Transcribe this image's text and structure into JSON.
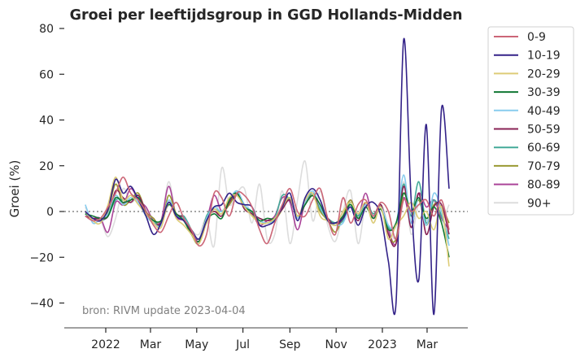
{
  "chart_data": {
    "type": "line",
    "title": "Groei per leeftijdsgroup in GGD Hollands-Midden",
    "xlabel": "",
    "ylabel": "Groei (%)",
    "ylim": [
      -50,
      80
    ],
    "xlim": [
      "2021-11-15",
      "2023-04-20"
    ],
    "yticks": [
      -40,
      -20,
      0,
      20,
      40,
      60,
      80
    ],
    "ytick_labels": [
      "−40",
      "−20",
      "0",
      "20",
      "40",
      "60",
      "80"
    ],
    "xticks": [
      "2022-01-01",
      "2022-03-01",
      "2022-05-01",
      "2022-07-01",
      "2022-09-01",
      "2022-11-01",
      "2023-01-01",
      "2023-03-01"
    ],
    "xtick_labels": [
      "2022",
      "Mar",
      "May",
      "Jul",
      "Sep",
      "Nov",
      "2023",
      "Mar"
    ],
    "reference_line": 0,
    "annotation": "bron: RIVM update 2023-04-04",
    "legend_position": "outside-right",
    "grid": false,
    "x_start": "2021-12-05",
    "x_step_days": 10,
    "series": [
      {
        "name": "0-9",
        "color": "#cc6677",
        "values": [
          -2,
          -4,
          -3,
          2,
          8,
          15,
          8,
          5,
          0,
          -6,
          -9,
          -2,
          4,
          -3,
          -8,
          -15,
          -10,
          8,
          6,
          -2,
          8,
          7,
          2,
          -8,
          -14,
          -5,
          3,
          10,
          0,
          -2,
          5,
          10,
          -3,
          -10,
          6,
          -5,
          3,
          5,
          -2,
          4,
          0,
          -12,
          5,
          0,
          3,
          5,
          -2,
          5,
          -8
        ]
      },
      {
        "name": "10-19",
        "color": "#332288",
        "values": [
          0,
          -3,
          -4,
          1,
          14,
          8,
          11,
          5,
          -2,
          -10,
          -5,
          4,
          -2,
          -4,
          -8,
          -12,
          -4,
          2,
          3,
          8,
          4,
          3,
          2,
          -6,
          -6,
          -4,
          2,
          8,
          -4,
          6,
          10,
          5,
          -4,
          -5,
          -3,
          2,
          -6,
          2,
          4,
          -2,
          -22,
          -40,
          75,
          5,
          -30,
          38,
          -45,
          45,
          10
        ]
      },
      {
        "name": "20-29",
        "color": "#ddcc77",
        "values": [
          0,
          -4,
          -5,
          3,
          15,
          5,
          7,
          3,
          -1,
          -5,
          -7,
          4,
          -3,
          -6,
          -10,
          -14,
          -5,
          1,
          -1,
          6,
          7,
          2,
          -2,
          -5,
          -5,
          -3,
          2,
          6,
          -2,
          5,
          8,
          -2,
          -4,
          -6,
          0,
          4,
          -1,
          4,
          -5,
          2,
          -12,
          -6,
          -2,
          4,
          -3,
          0,
          -8,
          2,
          -24
        ]
      },
      {
        "name": "30-39",
        "color": "#117733",
        "values": [
          -1,
          -2,
          -3,
          -2,
          6,
          4,
          5,
          6,
          -1,
          -4,
          -4,
          3,
          -1,
          -4,
          -10,
          -13,
          -4,
          -1,
          -3,
          5,
          8,
          2,
          0,
          -4,
          -3,
          -3,
          2,
          6,
          -2,
          3,
          7,
          3,
          -4,
          -5,
          -2,
          3,
          -3,
          2,
          -3,
          1,
          -8,
          -5,
          8,
          0,
          6,
          -3,
          2,
          -5,
          -20
        ]
      },
      {
        "name": "40-49",
        "color": "#88ccee",
        "values": [
          3,
          -5,
          -3,
          -1,
          7,
          3,
          6,
          4,
          -2,
          -5,
          -6,
          5,
          -2,
          -3,
          -8,
          -12,
          -3,
          2,
          0,
          5,
          9,
          3,
          0,
          -4,
          -5,
          -4,
          2,
          6,
          -3,
          4,
          9,
          2,
          -4,
          -6,
          -5,
          2,
          -3,
          3,
          -2,
          2,
          -6,
          -6,
          16,
          -5,
          6,
          -6,
          8,
          0,
          -15
        ]
      },
      {
        "name": "50-59",
        "color": "#882255",
        "values": [
          -2,
          -3,
          -3,
          -2,
          9,
          6,
          4,
          7,
          0,
          -5,
          -5,
          4,
          -1,
          -3,
          -9,
          -12,
          -3,
          0,
          -2,
          4,
          8,
          1,
          -1,
          -3,
          -4,
          -3,
          1,
          5,
          -3,
          3,
          7,
          2,
          -3,
          -6,
          -3,
          2,
          -4,
          4,
          -2,
          3,
          -10,
          -14,
          11,
          -7,
          8,
          -10,
          2,
          3,
          -10
        ]
      },
      {
        "name": "60-69",
        "color": "#44aa99",
        "values": [
          -1,
          -3,
          -4,
          -2,
          5,
          5,
          5,
          7,
          -1,
          -4,
          -6,
          4,
          -2,
          -2,
          -8,
          -14,
          -2,
          1,
          0,
          4,
          9,
          2,
          -1,
          -4,
          -5,
          -3,
          7,
          5,
          -2,
          4,
          8,
          1,
          -3,
          -5,
          -4,
          4,
          -2,
          4,
          -1,
          2,
          -7,
          -6,
          12,
          -2,
          13,
          -5,
          5,
          -2,
          -12
        ]
      },
      {
        "name": "70-79",
        "color": "#999933",
        "values": [
          -1,
          -3,
          -4,
          0,
          12,
          3,
          5,
          8,
          0,
          -3,
          -6,
          7,
          -1,
          -3,
          -10,
          -14,
          -2,
          0,
          -1,
          3,
          7,
          2,
          -1,
          -5,
          -5,
          -4,
          1,
          6,
          -2,
          4,
          7,
          0,
          -4,
          -9,
          -2,
          5,
          -3,
          4,
          -2,
          3,
          -10,
          -12,
          8,
          -2,
          5,
          -6,
          3,
          2,
          -5
        ]
      },
      {
        "name": "80-89",
        "color": "#aa4499",
        "values": [
          -2,
          -3,
          -3,
          -9,
          4,
          3,
          10,
          5,
          2,
          -4,
          -4,
          11,
          -2,
          -4,
          -9,
          -13,
          -4,
          7,
          0,
          3,
          8,
          2,
          -1,
          -6,
          -4,
          -2,
          6,
          4,
          -8,
          4,
          8,
          2,
          -3,
          -6,
          -3,
          5,
          -2,
          8,
          -3,
          3,
          -8,
          -14,
          6,
          -5,
          8,
          2,
          5,
          -3,
          -8
        ]
      },
      {
        "name": "90+",
        "color": "#dddddd",
        "values": [
          2,
          -5,
          -4,
          -11,
          -3,
          10,
          4,
          6,
          1,
          -3,
          -5,
          13,
          -2,
          -3,
          -8,
          -10,
          -3,
          -15,
          19,
          3,
          8,
          10,
          -5,
          12,
          -12,
          -10,
          9,
          -14,
          5,
          22,
          -4,
          9,
          -6,
          -13,
          0,
          9,
          -14,
          3,
          -5,
          3,
          -6,
          -11,
          13,
          -10,
          3,
          -4,
          2,
          -4,
          3
        ]
      }
    ]
  }
}
